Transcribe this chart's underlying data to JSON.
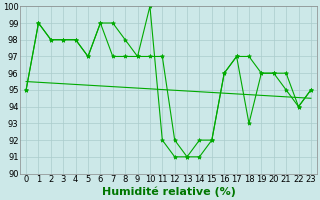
{
  "series": [
    {
      "x": [
        0,
        1,
        2,
        3,
        4,
        5,
        6,
        7,
        8,
        9,
        10,
        11,
        12,
        13,
        14,
        15,
        16,
        17,
        18,
        19,
        20,
        21,
        22,
        23
      ],
      "y": [
        95,
        99,
        98,
        98,
        98,
        97,
        99,
        99,
        98,
        97,
        100,
        92,
        91,
        91,
        92,
        92,
        96,
        97,
        93,
        96,
        96,
        95,
        94,
        95
      ],
      "has_markers": true
    },
    {
      "x": [
        0,
        1,
        2,
        3,
        4,
        5,
        6,
        7,
        8,
        9,
        10,
        11,
        12,
        13,
        14,
        15,
        16,
        17,
        18,
        19,
        20,
        21,
        22,
        23
      ],
      "y": [
        95,
        99,
        98,
        98,
        98,
        97,
        99,
        97,
        97,
        97,
        97,
        97,
        92,
        91,
        91,
        92,
        96,
        97,
        97,
        96,
        96,
        96,
        94,
        95
      ],
      "has_markers": true
    },
    {
      "x": [
        0,
        23
      ],
      "y": [
        95.5,
        94.5
      ],
      "has_markers": false
    }
  ],
  "line_color": "#00aa00",
  "marker": "*",
  "marker_size": 3,
  "bg_color": "#cce8e8",
  "grid_color": "#aacccc",
  "xlabel": "Humidité relative (%)",
  "xlabel_color": "#007700",
  "xlabel_fontsize": 8,
  "tick_fontsize": 6,
  "ylim": [
    90,
    100
  ],
  "xlim": [
    -0.5,
    23.5
  ],
  "yticks": [
    90,
    91,
    92,
    93,
    94,
    95,
    96,
    97,
    98,
    99,
    100
  ],
  "xticks": [
    0,
    1,
    2,
    3,
    4,
    5,
    6,
    7,
    8,
    9,
    10,
    11,
    12,
    13,
    14,
    15,
    16,
    17,
    18,
    19,
    20,
    21,
    22,
    23
  ]
}
